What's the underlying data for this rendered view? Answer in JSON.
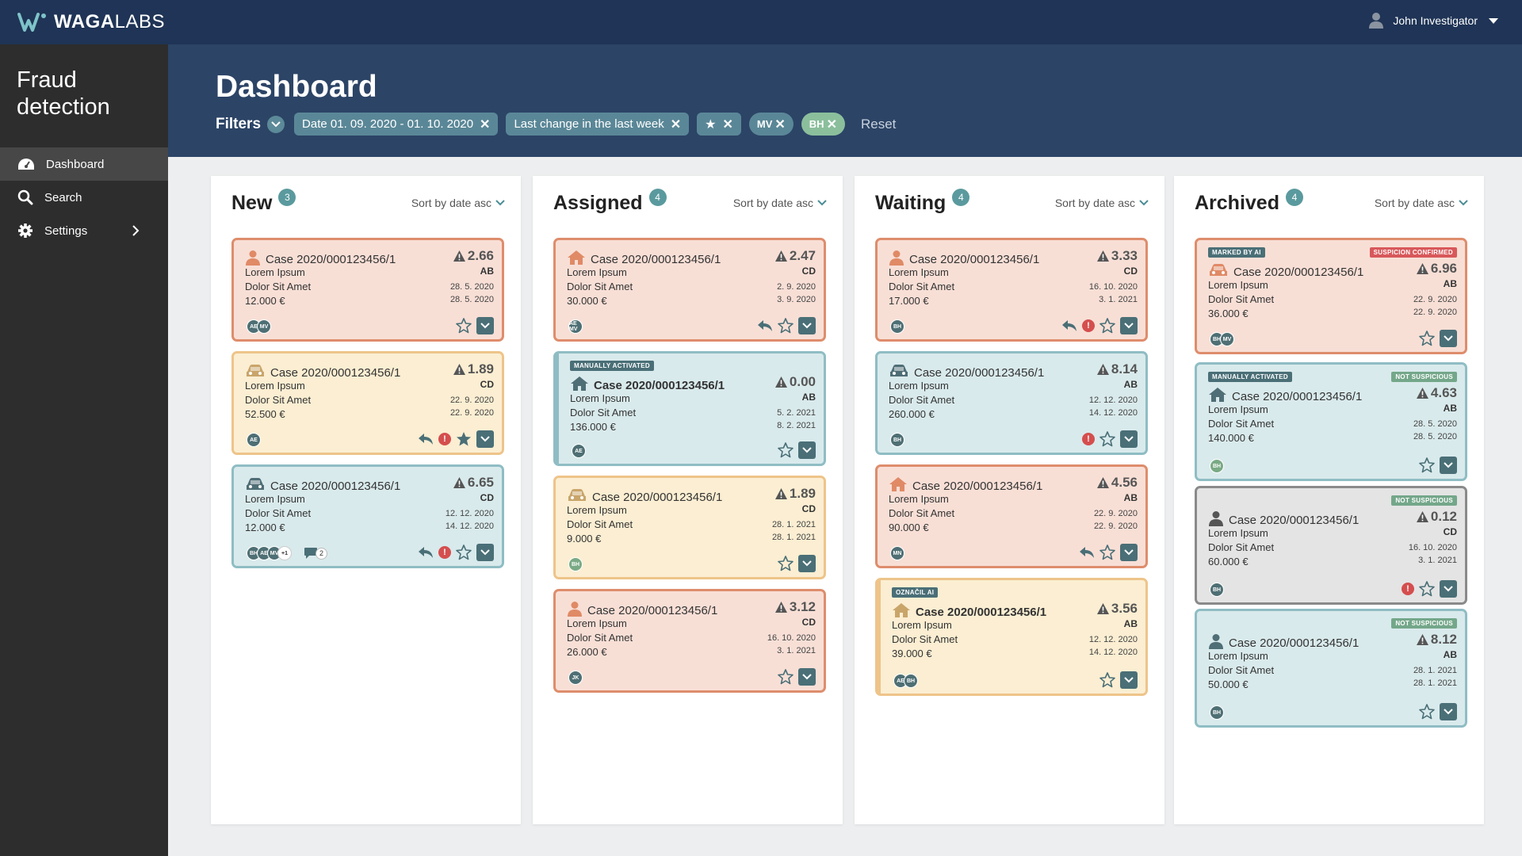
{
  "topbar": {
    "logo_bold": "WAGA",
    "logo_light": "LABS",
    "user_name": "John Investigator"
  },
  "sidebar": {
    "title_line1": "Fraud",
    "title_line2": "detection",
    "items": [
      {
        "label": "Dashboard",
        "icon": "dashboard-icon"
      },
      {
        "label": "Search",
        "icon": "search-icon"
      },
      {
        "label": "Settings",
        "icon": "gear-icon"
      }
    ]
  },
  "header": {
    "title": "Dashboard",
    "filters_label": "Filters",
    "chips": [
      {
        "label": "Date 01. 09. 2020 - 01. 10. 2020"
      },
      {
        "label": "Last change in the last week"
      },
      {
        "label": "",
        "icon": "star-icon"
      },
      {
        "label": "MV"
      },
      {
        "label": "BH"
      }
    ],
    "reset_label": "Reset"
  },
  "columns": [
    {
      "title": "New",
      "count": "3",
      "sort": "Sort by date asc",
      "cards": [
        {
          "color": "peach",
          "icon": "person-icon",
          "title": "Case 2020/000123456/1",
          "score": "2.66",
          "code": "AB",
          "line1": "Lorem Ipsum",
          "line2": "Dolor Sit Amet",
          "amount": "12.000 €",
          "date1": "28. 5. 2020",
          "date2": "28. 5. 2020",
          "avatars": [
            "AE",
            "MV"
          ],
          "actions": [
            "star",
            "dropdown"
          ]
        },
        {
          "color": "yellow",
          "icon": "car-icon",
          "title": "Case 2020/000123456/1",
          "score": "1.89",
          "code": "CD",
          "line1": "Lorem Ipsum",
          "line2": "Dolor Sit Amet",
          "amount": "52.500 €",
          "date1": "22. 9. 2020",
          "date2": "22. 9. 2020",
          "avatars": [
            "AE"
          ],
          "actions": [
            "reply",
            "alert",
            "star-filled",
            "dropdown"
          ]
        },
        {
          "color": "blue",
          "icon": "car-icon",
          "title": "Case 2020/000123456/1",
          "score": "6.65",
          "code": "CD",
          "line1": "Lorem Ipsum",
          "line2": "Dolor Sit Amet",
          "amount": "12.000 €",
          "date1": "12. 12. 2020",
          "date2": "14. 12. 2020",
          "avatars": [
            "BH",
            "AE",
            "MV",
            "+1"
          ],
          "comments": "2",
          "actions": [
            "reply",
            "alert",
            "star",
            "dropdown"
          ]
        }
      ]
    },
    {
      "title": "Assigned",
      "count": "4",
      "sort": "Sort by date asc",
      "cards": [
        {
          "color": "peach",
          "icon": "house-icon",
          "title": "Case 2020/000123456/1",
          "score": "2.47",
          "code": "CD",
          "line1": "Lorem Ipsum",
          "line2": "Dolor Sit Amet",
          "amount": "30.000 €",
          "date1": "2. 9. 2020",
          "date2": "3. 9. 2020",
          "avatars": [
            "AE MV"
          ],
          "actions": [
            "reply",
            "star",
            "dropdown"
          ]
        },
        {
          "color": "blue",
          "icon": "house-icon",
          "tag": "MANUALLY ACTIVATED",
          "title": "Case 2020/000123456/1",
          "bold": true,
          "score": "0.00",
          "code": "AB",
          "line1": "Lorem Ipsum",
          "line2": "Dolor Sit Amet",
          "amount": "136.000 €",
          "date1": "5. 2. 2021",
          "date2": "8. 2. 2021",
          "avatars": [
            "AE"
          ],
          "actions": [
            "star",
            "dropdown"
          ]
        },
        {
          "color": "yellow",
          "icon": "car-icon",
          "title": "Case 2020/000123456/1",
          "score": "1.89",
          "code": "CD",
          "line1": "Lorem Ipsum",
          "line2": "Dolor Sit Amet",
          "amount": "9.000 €",
          "date1": "28. 1. 2021",
          "date2": "28. 1. 2021",
          "avatars": [
            "BH"
          ],
          "avatar_green": true,
          "actions": [
            "star",
            "dropdown"
          ]
        },
        {
          "color": "peach",
          "icon": "person-icon",
          "title": "Case 2020/000123456/1",
          "score": "3.12",
          "code": "CD",
          "line1": "Lorem Ipsum",
          "line2": "Dolor Sit Amet",
          "amount": "26.000 €",
          "date1": "16. 10. 2020",
          "date2": "3. 1. 2021",
          "avatars": [
            "JK"
          ],
          "actions": [
            "star",
            "dropdown"
          ]
        }
      ]
    },
    {
      "title": "Waiting",
      "count": "4",
      "sort": "Sort by date asc",
      "cards": [
        {
          "color": "peach",
          "icon": "person-icon",
          "title": "Case 2020/000123456/1",
          "score": "3.33",
          "code": "CD",
          "line1": "Lorem Ipsum",
          "line2": "Dolor Sit Amet",
          "amount": "17.000 €",
          "date1": "16. 10. 2020",
          "date2": "3. 1. 2021",
          "avatars": [
            "BH"
          ],
          "actions": [
            "reply",
            "alert",
            "star",
            "dropdown"
          ]
        },
        {
          "color": "blue",
          "icon": "car-icon",
          "title": "Case 2020/000123456/1",
          "score": "8.14",
          "code": "AB",
          "line1": "Lorem Ipsum",
          "line2": "Dolor Sit Amet",
          "amount": "260.000 €",
          "date1": "12. 12. 2020",
          "date2": "14. 12. 2020",
          "avatars": [
            "BH"
          ],
          "actions": [
            "alert",
            "star",
            "dropdown"
          ]
        },
        {
          "color": "peach",
          "icon": "house-icon",
          "title": "Case 2020/000123456/1",
          "score": "4.56",
          "code": "AB",
          "line1": "Lorem Ipsum",
          "line2": "Dolor Sit Amet",
          "amount": "90.000 €",
          "date1": "22. 9. 2020",
          "date2": "22. 9. 2020",
          "avatars": [
            "MN"
          ],
          "actions": [
            "reply",
            "star",
            "dropdown"
          ]
        },
        {
          "color": "yellow",
          "icon": "house-icon",
          "tag": "OZNAČIL AI",
          "title": "Case 2020/000123456/1",
          "bold": true,
          "score": "3.56",
          "code": "AB",
          "line1": "Lorem Ipsum",
          "line2": "Dolor Sit Amet",
          "amount": "39.000 €",
          "date1": "12. 12. 2020",
          "date2": "14. 12. 2020",
          "avatars": [
            "AE",
            "BH"
          ],
          "actions": [
            "star",
            "dropdown"
          ]
        }
      ]
    },
    {
      "title": "Archived",
      "count": "4",
      "sort": "Sort by date asc",
      "cards": [
        {
          "color": "peach",
          "icon": "car-icon",
          "tag": "MARKED BY AI",
          "tag_right": "SUSPICION CONFIRMED",
          "title": "Case 2020/000123456/1",
          "score": "6.96",
          "code": "AB",
          "line1": "Lorem Ipsum",
          "line2": "Dolor Sit Amet",
          "amount": "36.000 €",
          "date1": "22. 9. 2020",
          "date2": "22. 9. 2020",
          "avatars": [
            "BH",
            "MV"
          ],
          "actions": [
            "star",
            "dropdown"
          ]
        },
        {
          "color": "blue",
          "icon": "house-icon",
          "tag": "MANUALLY ACTIVATED",
          "tag_right": "NOT SUSPICIOUS",
          "title": "Case 2020/000123456/1",
          "score": "4.63",
          "code": "AB",
          "line1": "Lorem Ipsum",
          "line2": "Dolor Sit Amet",
          "amount": "140.000 €",
          "date1": "28. 5. 2020",
          "date2": "28. 5. 2020",
          "avatars": [
            "BH"
          ],
          "avatar_green": true,
          "actions": [
            "star",
            "dropdown"
          ]
        },
        {
          "color": "grey",
          "icon": "person-icon",
          "tag_right": "NOT SUSPICIOUS",
          "title": "Case 2020/000123456/1",
          "score": "0.12",
          "code": "CD",
          "line1": "Lorem Ipsum",
          "line2": "Dolor Sit Amet",
          "amount": "60.000 €",
          "date1": "16. 10. 2020",
          "date2": "3. 1. 2021",
          "avatars": [
            "BH"
          ],
          "actions": [
            "alert",
            "star",
            "dropdown"
          ]
        },
        {
          "color": "blue",
          "icon": "person-icon",
          "tag_right": "NOT SUSPICIOUS",
          "title": "Case 2020/000123456/1",
          "score": "8.12",
          "code": "AB",
          "line1": "Lorem Ipsum",
          "line2": "Dolor Sit Amet",
          "amount": "50.000 €",
          "date1": "28. 1. 2021",
          "date2": "28. 1. 2021",
          "avatars": [
            "BH"
          ],
          "actions": [
            "star",
            "dropdown"
          ]
        }
      ]
    }
  ]
}
